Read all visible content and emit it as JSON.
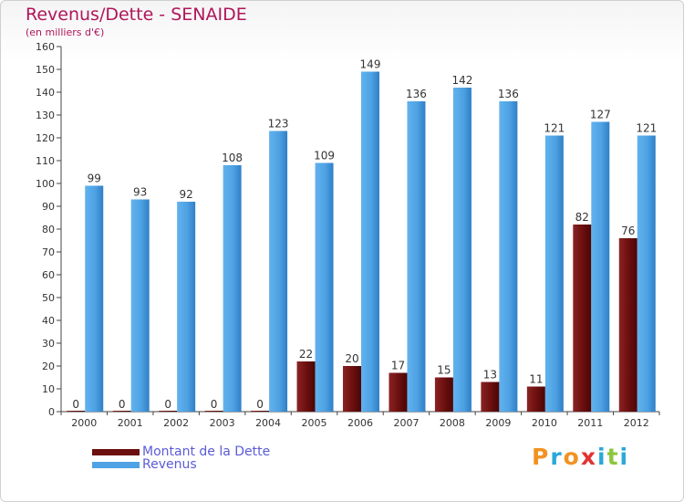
{
  "header": {
    "title": "Revenus/Dette - SENAIDE",
    "subtitle": "(en milliers d'€)"
  },
  "colors": {
    "debt": "#7a1515",
    "revenue": "#4fa3e5",
    "title": "#b0155a",
    "legend_text": "#5b5bd8"
  },
  "legend": {
    "items": [
      {
        "label": "Montant de la Dette",
        "color": "#6b0f0f"
      },
      {
        "label": "Revenus",
        "color": "#4fa3e5"
      }
    ]
  },
  "logo": {
    "text": "Proxiti",
    "letters": [
      {
        "ch": "P",
        "color": "#f29222"
      },
      {
        "ch": "r",
        "color": "#2aa8d8"
      },
      {
        "ch": "o",
        "color": "#f29222"
      },
      {
        "ch": "x",
        "color": "#e33232"
      },
      {
        "ch": "i",
        "color": "#2aa8d8"
      },
      {
        "ch": "t",
        "color": "#8cc63f"
      },
      {
        "ch": "i",
        "color": "#2aa8d8"
      }
    ]
  },
  "chart_data": {
    "type": "bar",
    "title": "Revenus/Dette - SENAIDE",
    "subtitle": "(en milliers d'€)",
    "categories": [
      "2000",
      "2001",
      "2002",
      "2003",
      "2004",
      "2005",
      "2006",
      "2007",
      "2008",
      "2009",
      "2010",
      "2011",
      "2012"
    ],
    "series": [
      {
        "name": "Montant de la Dette",
        "values": [
          0,
          0,
          0,
          0,
          0,
          22,
          20,
          17,
          15,
          13,
          11,
          82,
          76
        ]
      },
      {
        "name": "Revenus",
        "values": [
          99,
          93,
          92,
          108,
          123,
          109,
          149,
          136,
          142,
          136,
          121,
          127,
          121
        ]
      }
    ],
    "ylim": [
      0,
      160
    ],
    "yticks": [
      0,
      10,
      20,
      30,
      40,
      50,
      60,
      70,
      80,
      90,
      100,
      110,
      120,
      130,
      140,
      150,
      160
    ],
    "grid": false,
    "data_labels": true,
    "legend_position": "bottom-left"
  }
}
